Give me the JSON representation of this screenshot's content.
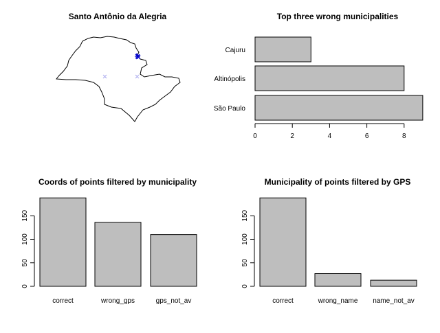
{
  "colors": {
    "bar_fill": "#bebebe",
    "bar_stroke": "#000000",
    "map_outline": "#000000",
    "point_highlight": "#0000cc",
    "point_faint": "#aaaaee"
  },
  "chart_data": [
    {
      "type": "map",
      "title": "Santo Antônio da Alegria",
      "axes_shown": false,
      "points": [
        {
          "marker": "x",
          "color": "dark-blue",
          "count": "cluster"
        },
        {
          "marker": "x",
          "color": "light-blue",
          "count": 1
        },
        {
          "marker": "x",
          "color": "light-blue",
          "count": 1
        }
      ]
    },
    {
      "type": "bar",
      "orientation": "horizontal",
      "title": "Top three wrong municipalities",
      "categories": [
        "São Paulo",
        "Altinópolis",
        "Cajuru"
      ],
      "values": [
        9,
        8,
        3
      ],
      "xlim": [
        0,
        9
      ],
      "xticks": [
        "0",
        "2",
        "4",
        "6",
        "8"
      ],
      "xlabel": "",
      "ylabel": "",
      "grid": false
    },
    {
      "type": "bar",
      "orientation": "vertical",
      "title": "Coords of points filtered by municipality",
      "categories": [
        "correct",
        "wrong_gps",
        "gps_not_av"
      ],
      "values": [
        188,
        136,
        110
      ],
      "ylim": [
        0,
        190
      ],
      "yticks": [
        "0",
        "50",
        "100",
        "150"
      ],
      "xlabel": "",
      "ylabel": "",
      "grid": false
    },
    {
      "type": "bar",
      "orientation": "vertical",
      "title": "Municipality of points filtered by GPS",
      "categories": [
        "correct",
        "wrong_name",
        "name_not_av"
      ],
      "values": [
        188,
        27,
        13
      ],
      "ylim": [
        0,
        190
      ],
      "yticks": [
        "0",
        "50",
        "100",
        "150"
      ],
      "xlabel": "",
      "ylabel": "",
      "grid": false
    }
  ]
}
